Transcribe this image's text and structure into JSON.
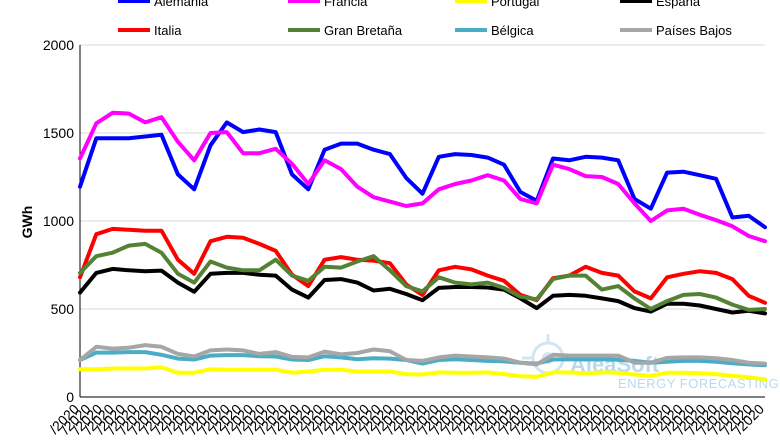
{
  "chart_data": {
    "type": "line",
    "title": "",
    "xlabel": "",
    "ylabel": "GWh",
    "ylim": [
      0,
      2000
    ],
    "yticks": [
      0,
      500,
      1000,
      1500,
      2000
    ],
    "y_grid": true,
    "legend_position": "top",
    "x_tick_labels": [
      "/2020",
      "/2020",
      "/2020",
      "/2020",
      "/2020",
      "/2020",
      "/2020",
      "/2020",
      "/2020",
      "/2020",
      "/2020",
      "/2020",
      "/2020",
      "/2020",
      "/2020",
      "/2020",
      "/2020",
      "/2020",
      "/2020",
      "/2020",
      "/2020",
      "/2020",
      "/2020",
      "/2020",
      "/2020",
      "/2020",
      "/2020",
      "/2020",
      "/2020",
      "/2020",
      "/2020",
      "/2020",
      "/2020",
      "/2020",
      "/2020",
      "/2020",
      "/2020",
      "/2020",
      "/2020",
      "/2020",
      "/2020",
      "/2020",
      "/2020",
      "/2020",
      "/2020",
      "/2020",
      "/2020",
      "/2020",
      "/2020",
      "/2020",
      "/2020",
      "/2020",
      "/2020",
      "/2020",
      "/2020",
      "/2020",
      "/2020",
      "/2020",
      "/2020",
      "/2020"
    ],
    "series": [
      {
        "name": "Alemania",
        "color": "#0000ff",
        "values": [
          1195,
          1470,
          1470,
          1470,
          1480,
          1490,
          1265,
          1180,
          1430,
          1560,
          1505,
          1520,
          1505,
          1265,
          1180,
          1405,
          1440,
          1440,
          1405,
          1380,
          1245,
          1155,
          1365,
          1380,
          1375,
          1360,
          1320,
          1165,
          1115,
          1355,
          1345,
          1365,
          1360,
          1345,
          1125,
          1070,
          1275,
          1280,
          1260,
          1240,
          1020,
          1030,
          965
        ]
      },
      {
        "name": "Francia",
        "color": "#ff00ff",
        "values": [
          1355,
          1555,
          1615,
          1610,
          1560,
          1590,
          1450,
          1345,
          1500,
          1505,
          1385,
          1385,
          1410,
          1325,
          1210,
          1345,
          1295,
          1195,
          1135,
          1110,
          1085,
          1100,
          1180,
          1210,
          1230,
          1260,
          1230,
          1125,
          1100,
          1320,
          1295,
          1255,
          1250,
          1210,
          1100,
          1000,
          1060,
          1070,
          1035,
          1005,
          970,
          915,
          885
        ]
      },
      {
        "name": "Portugal",
        "color": "#ffff00",
        "values": [
          158,
          158,
          162,
          162,
          162,
          168,
          138,
          138,
          158,
          155,
          155,
          155,
          155,
          138,
          145,
          155,
          155,
          145,
          145,
          145,
          130,
          128,
          140,
          138,
          138,
          140,
          130,
          118,
          115,
          140,
          140,
          135,
          140,
          138,
          128,
          120,
          138,
          138,
          135,
          130,
          120,
          112,
          100
        ]
      },
      {
        "name": "España",
        "color": "#000000",
        "values": [
          593,
          705,
          728,
          720,
          715,
          718,
          650,
          598,
          700,
          705,
          705,
          695,
          690,
          610,
          565,
          665,
          670,
          650,
          605,
          615,
          585,
          550,
          620,
          625,
          625,
          622,
          610,
          560,
          505,
          575,
          580,
          575,
          560,
          545,
          505,
          485,
          530,
          530,
          520,
          500,
          480,
          490,
          475
        ]
      },
      {
        "name": "Italia",
        "color": "#ff0000",
        "values": [
          680,
          925,
          955,
          950,
          945,
          945,
          780,
          700,
          885,
          910,
          905,
          870,
          830,
          695,
          630,
          780,
          795,
          780,
          775,
          760,
          640,
          580,
          720,
          740,
          725,
          690,
          660,
          580,
          550,
          675,
          690,
          740,
          705,
          690,
          600,
          560,
          680,
          700,
          715,
          705,
          670,
          575,
          535
        ]
      },
      {
        "name": "Gran Bretaña",
        "color": "#548235",
        "values": [
          705,
          800,
          820,
          860,
          870,
          820,
          700,
          650,
          770,
          735,
          720,
          720,
          780,
          690,
          660,
          740,
          735,
          770,
          800,
          720,
          630,
          600,
          680,
          650,
          640,
          650,
          620,
          570,
          555,
          670,
          690,
          690,
          610,
          630,
          560,
          500,
          545,
          580,
          585,
          565,
          525,
          495,
          500
        ]
      },
      {
        "name": "Bélgica",
        "color": "#4bacc6",
        "values": [
          210,
          252,
          252,
          255,
          255,
          240,
          218,
          213,
          235,
          238,
          238,
          232,
          230,
          213,
          210,
          232,
          225,
          215,
          220,
          218,
          210,
          190,
          210,
          215,
          210,
          205,
          202,
          195,
          190,
          213,
          215,
          213,
          215,
          212,
          205,
          195,
          200,
          205,
          205,
          200,
          192,
          185,
          180
        ]
      },
      {
        "name": "Países Bajos",
        "color": "#a6a6a6",
        "values": [
          210,
          285,
          275,
          280,
          295,
          285,
          245,
          230,
          265,
          270,
          265,
          245,
          255,
          228,
          225,
          258,
          242,
          250,
          270,
          260,
          210,
          205,
          225,
          235,
          230,
          225,
          218,
          195,
          185,
          240,
          235,
          235,
          235,
          235,
          195,
          195,
          222,
          225,
          225,
          220,
          210,
          195,
          190
        ]
      }
    ]
  },
  "watermark": {
    "brand": "AleaSoft",
    "tagline": "ENERGY FORECASTING"
  }
}
